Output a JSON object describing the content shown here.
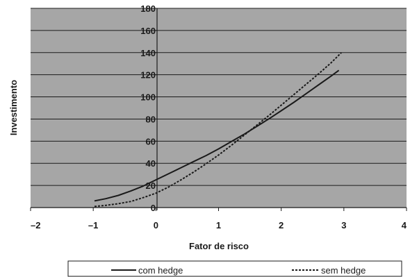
{
  "chart_data": {
    "type": "line",
    "title": "",
    "xlabel": "Fator de risco",
    "ylabel": "Investimento",
    "xlim": [
      -2,
      4
    ],
    "ylim": [
      0,
      180
    ],
    "x_ticks": [
      "–2",
      "–1",
      "0",
      "1",
      "2",
      "3",
      "4"
    ],
    "y_ticks": [
      "0",
      "20",
      "40",
      "60",
      "80",
      "100",
      "120",
      "140",
      "160",
      "180"
    ],
    "grid": true,
    "legend_position": "bottom",
    "plot_background": "#a6a6a6",
    "series": [
      {
        "name": "com hedge",
        "style": "solid",
        "color": "#1a1a1a",
        "x": [
          -0.98,
          -0.8,
          -0.6,
          -0.4,
          -0.2,
          0,
          0.2,
          0.4,
          0.6,
          0.8,
          1.0,
          1.2,
          1.4,
          1.6,
          1.8,
          2.0,
          2.2,
          2.4,
          2.6,
          2.8,
          2.92
        ],
        "y": [
          6,
          8,
          11,
          15,
          19.5,
          25,
          30.5,
          36,
          41.5,
          47,
          53,
          59.5,
          66,
          73,
          80,
          87.5,
          95,
          103,
          111,
          119,
          124
        ]
      },
      {
        "name": "sem hedge",
        "style": "dashed",
        "color": "#1a1a1a",
        "x": [
          -0.98,
          -0.8,
          -0.6,
          -0.4,
          -0.2,
          0,
          0.2,
          0.4,
          0.6,
          0.8,
          1.0,
          1.2,
          1.4,
          1.6,
          1.8,
          2.0,
          2.2,
          2.4,
          2.6,
          2.8,
          2.96
        ],
        "y": [
          1,
          2,
          3.5,
          5.5,
          9,
          13,
          18.5,
          25,
          32,
          39.5,
          47.5,
          56,
          65,
          74,
          83,
          92.5,
          102,
          111.5,
          121,
          131,
          140
        ]
      }
    ]
  }
}
